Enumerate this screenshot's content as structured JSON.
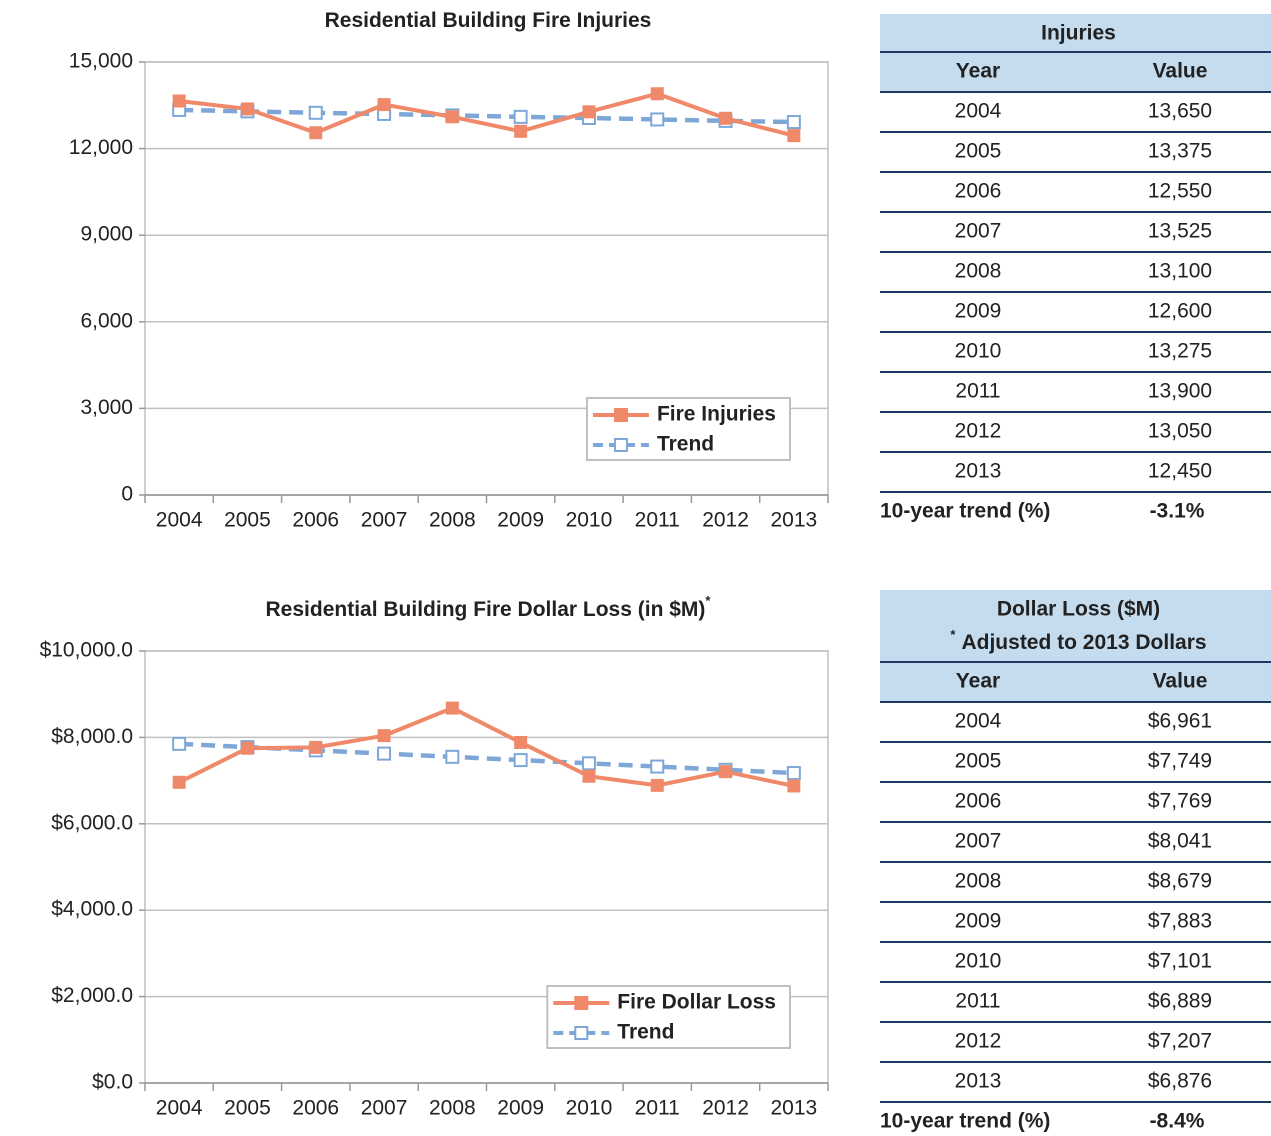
{
  "chart_data": [
    {
      "type": "line",
      "title": "Residential Building Fire Injuries",
      "categories": [
        "2004",
        "2005",
        "2006",
        "2007",
        "2008",
        "2009",
        "2010",
        "2011",
        "2012",
        "2013"
      ],
      "series": [
        {
          "name": "Fire Injuries",
          "color": "#f0896a",
          "line_style": "solid",
          "marker": "filled-square",
          "values": [
            13650,
            13375,
            12550,
            13525,
            13100,
            12600,
            13275,
            13900,
            13050,
            12450
          ]
        },
        {
          "name": "Trend",
          "color": "#7ea7d8",
          "line_style": "dashed",
          "marker": "open-square",
          "values": [
            13340,
            13290,
            13240,
            13200,
            13150,
            13100,
            13060,
            13010,
            12960,
            12920
          ]
        }
      ],
      "ylim": [
        0,
        15000
      ],
      "yticks": [
        0,
        {
          "value": 3000,
          "label": "3,000"
        },
        {
          "value": 6000,
          "label": "6,000"
        },
        {
          "value": 9000,
          "label": "9,000"
        },
        {
          "value": 12000,
          "label": "12,000"
        },
        {
          "value": 15000,
          "label": "15,000"
        }
      ],
      "grid": true,
      "legend": "lower right"
    },
    {
      "type": "line",
      "title": "Residential Building Fire Dollar Loss (in $M)",
      "title_note": "*",
      "categories": [
        "2004",
        "2005",
        "2006",
        "2007",
        "2008",
        "2009",
        "2010",
        "2011",
        "2012",
        "2013"
      ],
      "series": [
        {
          "name": "Fire Dollar Loss",
          "color": "#f0896a",
          "line_style": "solid",
          "marker": "filled-square",
          "values": [
            6961,
            7749,
            7769,
            8041,
            8679,
            7883,
            7101,
            6889,
            7207,
            6876
          ]
        },
        {
          "name": "Trend",
          "color": "#7ea7d8",
          "line_style": "dashed",
          "marker": "open-square",
          "values": [
            7850,
            7775,
            7700,
            7625,
            7550,
            7475,
            7400,
            7325,
            7250,
            7175
          ]
        }
      ],
      "ylim": [
        0,
        10000
      ],
      "yticks": [
        {
          "value": 0,
          "label": "$0.0"
        },
        {
          "value": 2000,
          "label": "$2,000.0"
        },
        {
          "value": 4000,
          "label": "$4,000.0"
        },
        {
          "value": 6000,
          "label": "$6,000.0"
        },
        {
          "value": 8000,
          "label": "$8,000.0"
        },
        {
          "value": 10000,
          "label": "$10,000.0"
        }
      ],
      "grid": true,
      "legend": "lower right"
    }
  ],
  "tables": [
    {
      "title": "Injuries",
      "columns": [
        "Year",
        "Value"
      ],
      "rows": [
        [
          "2004",
          "13,650"
        ],
        [
          "2005",
          "13,375"
        ],
        [
          "2006",
          "12,550"
        ],
        [
          "2007",
          "13,525"
        ],
        [
          "2008",
          "13,100"
        ],
        [
          "2009",
          "12,600"
        ],
        [
          "2010",
          "13,275"
        ],
        [
          "2011",
          "13,900"
        ],
        [
          "2012",
          "13,050"
        ],
        [
          "2013",
          "12,450"
        ]
      ],
      "footer": [
        "10-year trend (%)",
        "-3.1%"
      ]
    },
    {
      "title": "Dollar Loss ($M)",
      "note_mark": "*",
      "note": "Adjusted to 2013 Dollars",
      "columns": [
        "Year",
        "Value"
      ],
      "rows": [
        [
          "2004",
          "$6,961"
        ],
        [
          "2005",
          "$7,749"
        ],
        [
          "2006",
          "$7,769"
        ],
        [
          "2007",
          "$8,041"
        ],
        [
          "2008",
          "$8,679"
        ],
        [
          "2009",
          "$7,883"
        ],
        [
          "2010",
          "$7,101"
        ],
        [
          "2011",
          "$6,889"
        ],
        [
          "2012",
          "$7,207"
        ],
        [
          "2013",
          "$6,876"
        ]
      ],
      "footer": [
        "10-year trend (%)",
        "-8.4%"
      ]
    }
  ]
}
